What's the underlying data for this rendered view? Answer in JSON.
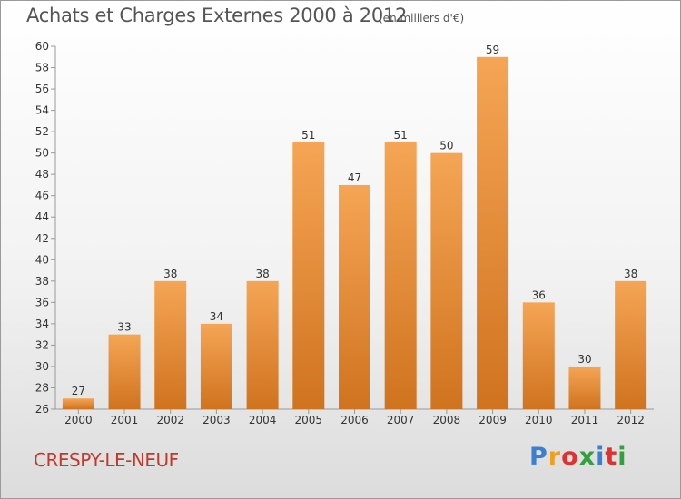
{
  "title": "Achats et Charges Externes 2000 à 2012",
  "unit_note": "(en milliers d'€)",
  "commune": "CRESPY-LE-NEUF",
  "logo_text": "Proxiti",
  "logo_colors": [
    "#3a7fd0",
    "#f0a020",
    "#e03030",
    "#30a040",
    "#3a7fd0",
    "#e03030",
    "#30a040"
  ],
  "colors": {
    "bar_light": "#f5a555",
    "bar_dark": "#d0731f",
    "commune": "#c0392b"
  },
  "chart_data": {
    "type": "bar",
    "categories": [
      "2000",
      "2001",
      "2002",
      "2003",
      "2004",
      "2005",
      "2006",
      "2007",
      "2008",
      "2009",
      "2010",
      "2011",
      "2012"
    ],
    "values": [
      27,
      33,
      38,
      34,
      38,
      51,
      47,
      51,
      50,
      59,
      36,
      30,
      38
    ],
    "ylim": [
      26,
      60
    ],
    "yticks": [
      26,
      28,
      30,
      32,
      34,
      36,
      38,
      40,
      42,
      44,
      46,
      48,
      50,
      52,
      54,
      56,
      58,
      60
    ],
    "grid": false,
    "xlabel": "",
    "ylabel": ""
  }
}
